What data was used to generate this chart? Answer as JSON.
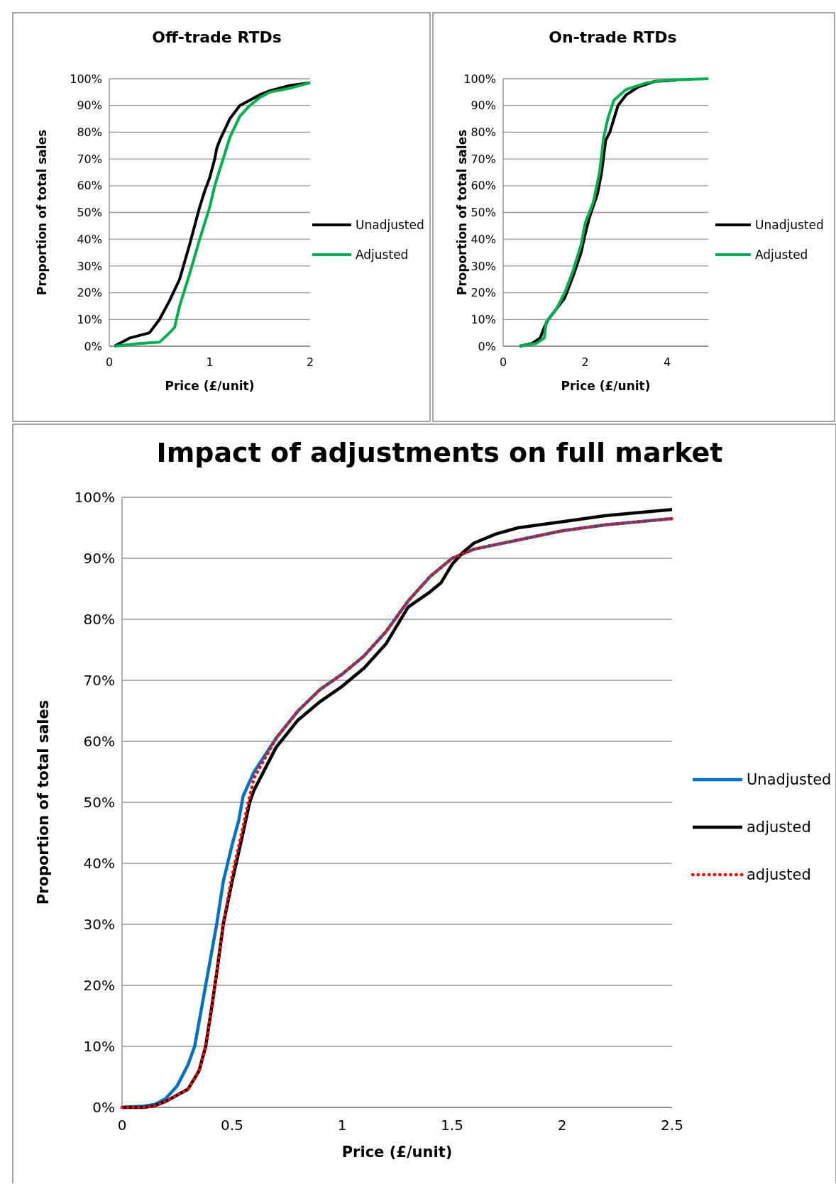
{
  "chart_data": [
    {
      "type": "line",
      "title": "Off-trade RTDs",
      "xlabel": "Price (£/unit)",
      "ylabel": "Proportion of total sales",
      "xlim": [
        0,
        2
      ],
      "xticks": [
        0,
        1,
        2
      ],
      "ylim": [
        0,
        100
      ],
      "yticks": [
        {
          "value": 0,
          "label": "0%"
        },
        {
          "value": 10,
          "label": "10%"
        },
        {
          "value": 20,
          "label": "20%"
        },
        {
          "value": 30,
          "label": "30%"
        },
        {
          "value": 40,
          "label": "40%"
        },
        {
          "value": 50,
          "label": "50%"
        },
        {
          "value": 60,
          "label": "60%"
        },
        {
          "value": 70,
          "label": "70%"
        },
        {
          "value": 80,
          "label": "80%"
        },
        {
          "value": 90,
          "label": "90%"
        },
        {
          "value": 100,
          "label": "100%"
        }
      ],
      "grid": "y",
      "legend": "right",
      "marker": "none",
      "line_style": "solid",
      "series": [
        {
          "name": "Unadjusted",
          "color": "#000000",
          "x": [
            0.05,
            0.2,
            0.4,
            0.5,
            0.6,
            0.7,
            0.8,
            0.85,
            0.9,
            0.95,
            1.0,
            1.05,
            1.07,
            1.1,
            1.2,
            1.3,
            1.4,
            1.5,
            1.6,
            1.8,
            2.0
          ],
          "values": [
            0,
            3,
            5,
            10,
            17,
            25,
            38,
            45,
            52,
            58,
            63,
            70,
            74,
            77,
            85,
            90,
            92,
            94,
            95.5,
            97.5,
            98.5
          ]
        },
        {
          "name": "Adjusted",
          "color": "#00b050",
          "x": [
            0.05,
            0.3,
            0.5,
            0.6,
            0.65,
            0.7,
            0.8,
            0.9,
            1.0,
            1.05,
            1.1,
            1.15,
            1.2,
            1.3,
            1.4,
            1.5,
            1.6,
            1.8,
            2.0
          ],
          "values": [
            0,
            1,
            1.5,
            5,
            7,
            15,
            27,
            40,
            52,
            60,
            66,
            72,
            78,
            86,
            90,
            93,
            95,
            96.5,
            98.5
          ]
        }
      ]
    },
    {
      "type": "line",
      "title": "On-trade RTDs",
      "xlabel": "Price (£/unit)",
      "ylabel": "Proportion of total sales",
      "xlim": [
        0,
        5
      ],
      "xticks": [
        0,
        2,
        4
      ],
      "ylim": [
        0,
        100
      ],
      "yticks": [
        {
          "value": 0,
          "label": "0%"
        },
        {
          "value": 10,
          "label": "10%"
        },
        {
          "value": 20,
          "label": "20%"
        },
        {
          "value": 30,
          "label": "30%"
        },
        {
          "value": 40,
          "label": "40%"
        },
        {
          "value": 50,
          "label": "50%"
        },
        {
          "value": 60,
          "label": "60%"
        },
        {
          "value": 70,
          "label": "70%"
        },
        {
          "value": 80,
          "label": "80%"
        },
        {
          "value": 90,
          "label": "90%"
        },
        {
          "value": 100,
          "label": "100%"
        }
      ],
      "grid": "y",
      "legend": "right",
      "marker": "none",
      "line_style": "solid",
      "series": [
        {
          "name": "Unadjusted",
          "color": "#000000",
          "x": [
            0.4,
            0.7,
            0.9,
            1.0,
            1.1,
            1.3,
            1.5,
            1.7,
            1.9,
            2.0,
            2.1,
            2.3,
            2.4,
            2.5,
            2.6,
            2.8,
            3.0,
            3.3,
            3.7,
            4.2
          ],
          "values": [
            0,
            1,
            3,
            7,
            10,
            14,
            18,
            26,
            35,
            42,
            48,
            57,
            65,
            77,
            80,
            90,
            94,
            97,
            99,
            99.5
          ]
        },
        {
          "name": "Adjusted",
          "color": "#00b050",
          "x": [
            0.4,
            0.8,
            1.0,
            1.05,
            1.3,
            1.5,
            1.7,
            1.9,
            2.0,
            2.2,
            2.35,
            2.45,
            2.55,
            2.7,
            3.0,
            3.5,
            4.0,
            5.0
          ],
          "values": [
            0,
            1,
            3,
            9,
            14,
            20,
            28,
            38,
            46,
            54,
            65,
            78,
            85,
            92,
            96,
            98.5,
            99.5,
            100
          ]
        }
      ]
    },
    {
      "type": "line",
      "title": "Impact of adjustments on full market",
      "xlabel": "Price (£/unit)",
      "ylabel": "Proportion of total sales",
      "xlim": [
        0,
        2.5
      ],
      "xticks": [
        0,
        0.5,
        1,
        1.5,
        2,
        2.5
      ],
      "ylim": [
        0,
        100
      ],
      "yticks": [
        {
          "value": 0,
          "label": "0%"
        },
        {
          "value": 10,
          "label": "10%"
        },
        {
          "value": 20,
          "label": "20%"
        },
        {
          "value": 30,
          "label": "30%"
        },
        {
          "value": 40,
          "label": "40%"
        },
        {
          "value": 50,
          "label": "50%"
        },
        {
          "value": 60,
          "label": "60%"
        },
        {
          "value": 70,
          "label": "70%"
        },
        {
          "value": 80,
          "label": "80%"
        },
        {
          "value": 90,
          "label": "90%"
        },
        {
          "value": 100,
          "label": "100%"
        }
      ],
      "grid": "y",
      "legend": "right",
      "marker": "none",
      "series": [
        {
          "name": "Unadjusted",
          "color": "#0070c0",
          "line_style": "solid",
          "x": [
            0,
            0.1,
            0.15,
            0.2,
            0.25,
            0.3,
            0.33,
            0.36,
            0.4,
            0.43,
            0.46,
            0.5,
            0.53,
            0.55,
            0.6,
            0.7,
            0.8,
            0.9,
            1.0,
            1.1,
            1.2,
            1.3,
            1.4,
            1.5,
            1.6,
            1.8,
            2.0,
            2.2,
            2.5
          ],
          "values": [
            0,
            0.2,
            0.5,
            1.5,
            3.5,
            7,
            10,
            16,
            24,
            30,
            37,
            43,
            47,
            51,
            55,
            60.5,
            65,
            68.5,
            71,
            74,
            78,
            83,
            87,
            90,
            91.5,
            93,
            94.5,
            95.5,
            96.5
          ]
        },
        {
          "name": "adjusted",
          "color": "#000000",
          "line_style": "solid",
          "x": [
            0,
            0.1,
            0.15,
            0.2,
            0.3,
            0.35,
            0.38,
            0.41,
            0.43,
            0.46,
            0.5,
            0.55,
            0.58,
            0.6,
            0.7,
            0.8,
            0.9,
            1.0,
            1.1,
            1.2,
            1.25,
            1.3,
            1.4,
            1.45,
            1.5,
            1.55,
            1.6,
            1.7,
            1.8,
            2.0,
            2.2,
            2.5
          ],
          "values": [
            0,
            0,
            0.3,
            1,
            3,
            6,
            10,
            17,
            22,
            30,
            37,
            45,
            50,
            52,
            59,
            63.5,
            66.5,
            69,
            72,
            76,
            79,
            82,
            84.5,
            86,
            89,
            91,
            92.5,
            94,
            95,
            96,
            97,
            98
          ]
        },
        {
          "name": "adjusted",
          "color": "#ff0000",
          "line_style": "dotted",
          "x": [
            0,
            0.1,
            0.15,
            0.2,
            0.3,
            0.35,
            0.38,
            0.41,
            0.43,
            0.46,
            0.5,
            0.55,
            0.58,
            0.6,
            0.7,
            0.8,
            0.9,
            1.0,
            1.1,
            1.2,
            1.3,
            1.4,
            1.5,
            1.6,
            1.8,
            2.0,
            2.2,
            2.5
          ],
          "values": [
            0,
            0,
            0.3,
            1,
            3,
            6,
            10,
            17,
            22,
            30,
            38,
            46,
            51,
            54,
            60.5,
            65,
            68.5,
            71,
            74,
            78,
            83,
            87,
            90,
            91.5,
            93,
            94.5,
            95.5,
            96.5
          ]
        }
      ]
    }
  ]
}
